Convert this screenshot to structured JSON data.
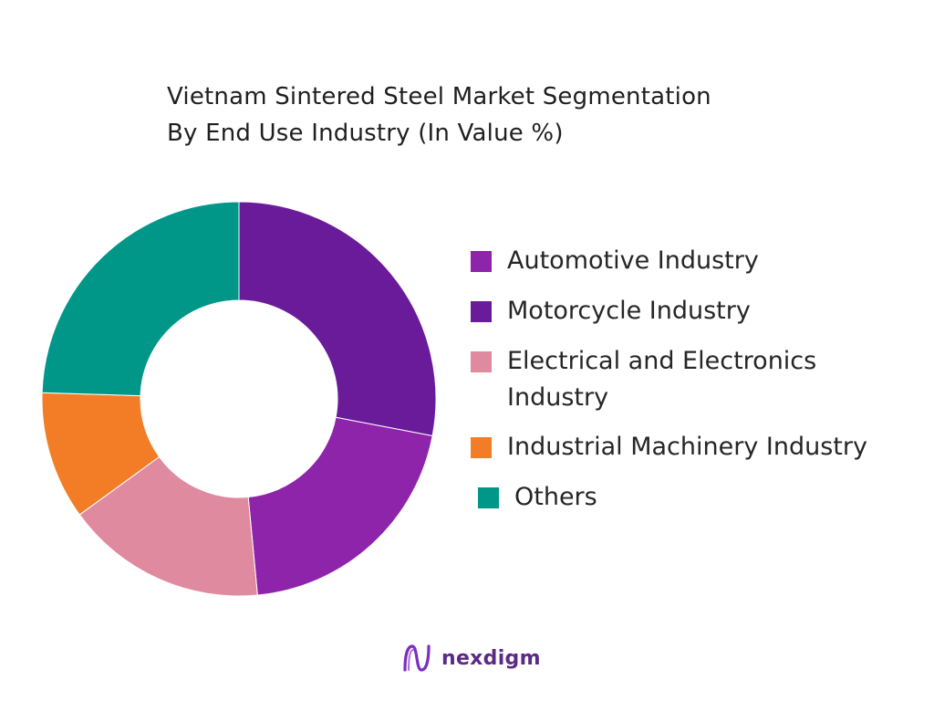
{
  "title_lines": [
    "Vietnam Sintered Steel Market Segmentation",
    "By End Use Industry (In Value %)"
  ],
  "brand": {
    "name": "nexdigm"
  },
  "chart_data": {
    "type": "pie",
    "title": "Vietnam Sintered Steel Market Segmentation By End Use Industry (In Value %)",
    "donut": true,
    "series": [
      {
        "name": "Motorcycle Industry",
        "value": 28.0,
        "color": "#6a1b9a"
      },
      {
        "name": "Automotive Industry",
        "value": 20.5,
        "color": "#8e24aa"
      },
      {
        "name": "Electrical and Electronics Industry",
        "value": 16.5,
        "color": "#e08aa0"
      },
      {
        "name": "Industrial Machinery Industry",
        "value": 10.5,
        "color": "#f37d26"
      },
      {
        "name": "Others",
        "value": 24.5,
        "color": "#009688"
      }
    ],
    "legend": {
      "position": "right",
      "entries": [
        {
          "label": "Automotive Industry",
          "color": "#8e24aa"
        },
        {
          "label": "Motorcycle Industry",
          "color": "#6a1b9a"
        },
        {
          "label": "Electrical and Electronics Industry",
          "color": "#e08aa0"
        },
        {
          "label": "Industrial Machinery Industry",
          "color": "#f37d26"
        },
        {
          "label": "Others",
          "color": "#009688"
        }
      ]
    }
  }
}
